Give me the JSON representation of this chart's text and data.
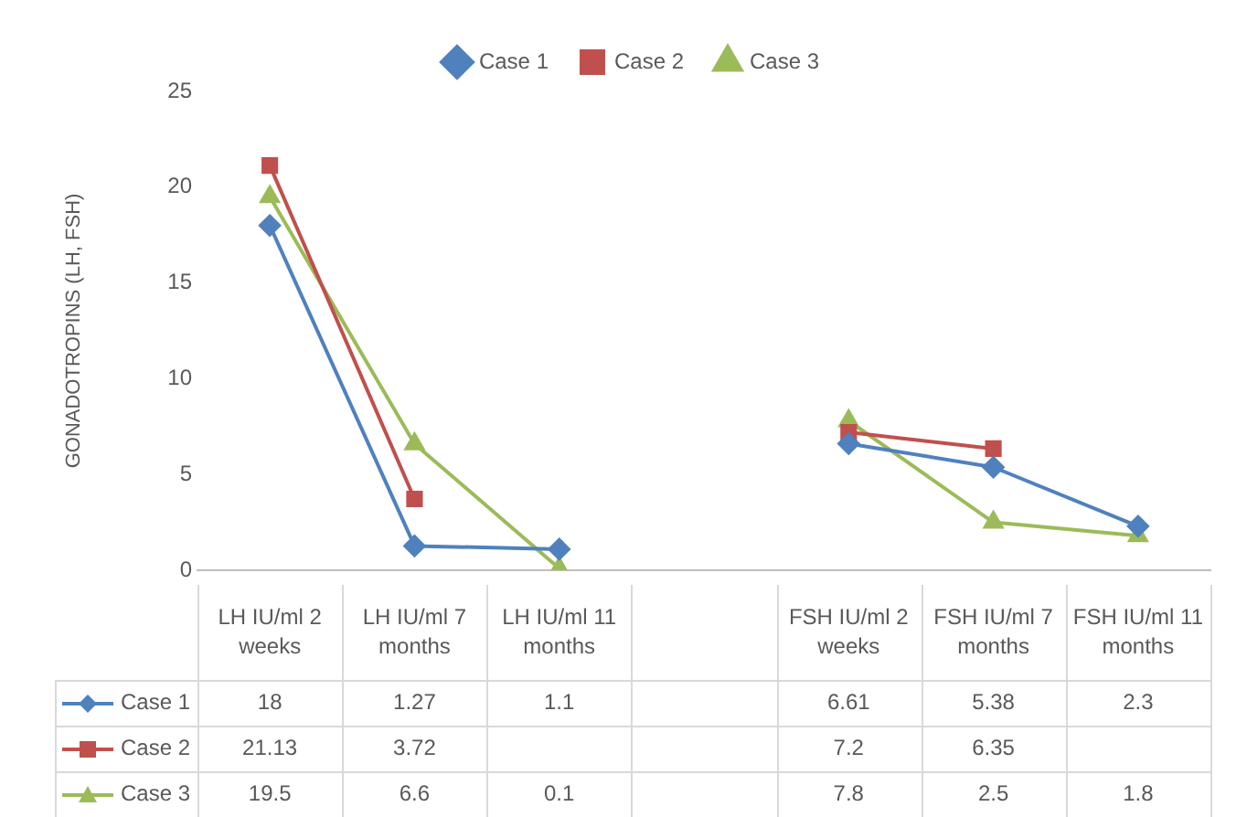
{
  "chart_data": {
    "type": "line",
    "ylabel": "GONADOTROPINS (LH, FSH)",
    "categories": [
      "LH IU/ml 2 weeks",
      "LH IU/ml 7 months",
      "LH IU/ml 11 months",
      null,
      "FSH IU/ml 2 weeks",
      "FSH IU/ml 7 months",
      "FSH IU/ml 11 months"
    ],
    "series": [
      {
        "name": "Case 1",
        "color": "#4f81bd",
        "marker": "diamond",
        "values": [
          18,
          1.27,
          1.1,
          null,
          6.61,
          5.38,
          2.3
        ]
      },
      {
        "name": "Case 2",
        "color": "#c0504d",
        "marker": "square",
        "values": [
          21.13,
          3.72,
          null,
          null,
          7.2,
          6.35,
          null
        ]
      },
      {
        "name": "Case 3",
        "color": "#9bbb59",
        "marker": "triangle",
        "values": [
          19.5,
          6.6,
          0.1,
          null,
          7.8,
          2.5,
          1.8
        ]
      }
    ],
    "ylim": [
      0,
      25
    ],
    "yticks": [
      0,
      5,
      10,
      15,
      20,
      25
    ],
    "legend": "top",
    "data_labels": true
  }
}
